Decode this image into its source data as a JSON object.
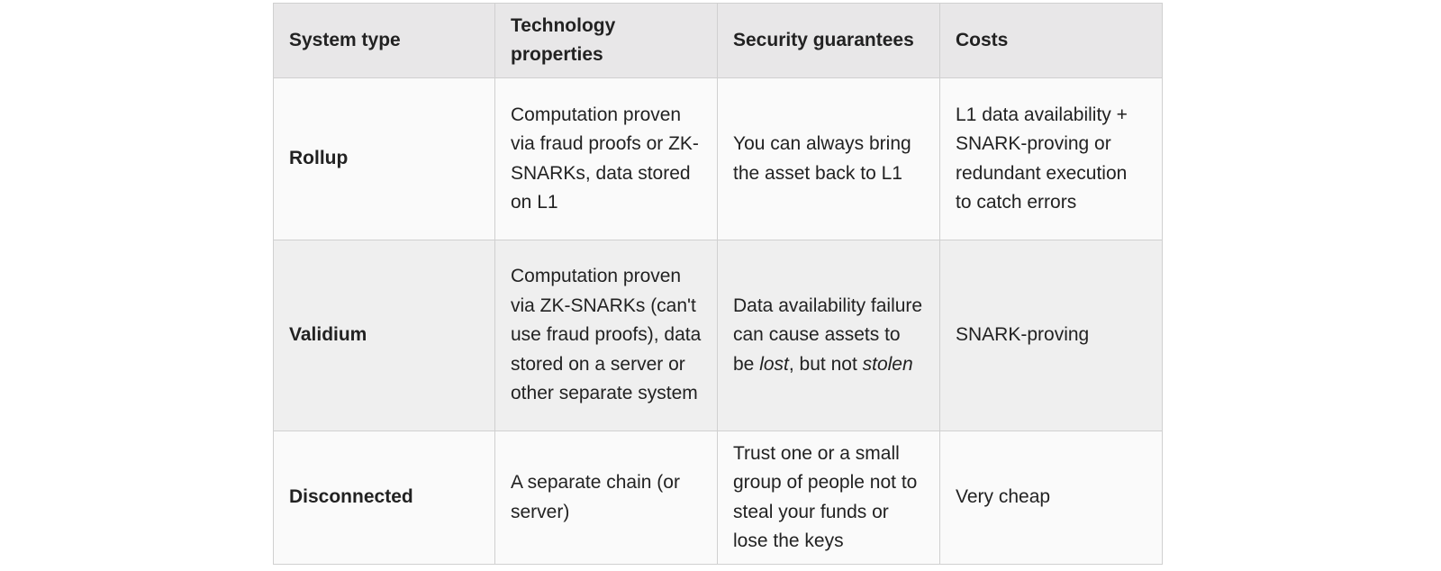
{
  "table": {
    "headers": {
      "system_type": "System type",
      "technology": "Technology properties",
      "security": "Security guarantees",
      "costs": "Costs"
    },
    "rows": [
      {
        "system_type": "Rollup",
        "technology": "Computation proven via fraud proofs or ZK-SNARKs, data stored on L1",
        "security": "You can always bring the asset back to L1",
        "costs": "L1 data availability + SNARK-proving or redundant execution to catch errors"
      },
      {
        "system_type": "Validium",
        "technology": "Computation proven via ZK-SNARKs (can't use fraud proofs), data stored on a server or other separate system",
        "security_parts": {
          "before_lost": "Data availability failure can cause assets to be ",
          "lost": "lost",
          "between": ", but not ",
          "stolen": "stolen"
        },
        "costs": "SNARK-proving"
      },
      {
        "system_type": "Disconnected",
        "technology": "A separate chain (or server)",
        "security": "Trust one or a small group of people not to steal your funds or lose the keys",
        "costs": "Very cheap"
      }
    ]
  }
}
